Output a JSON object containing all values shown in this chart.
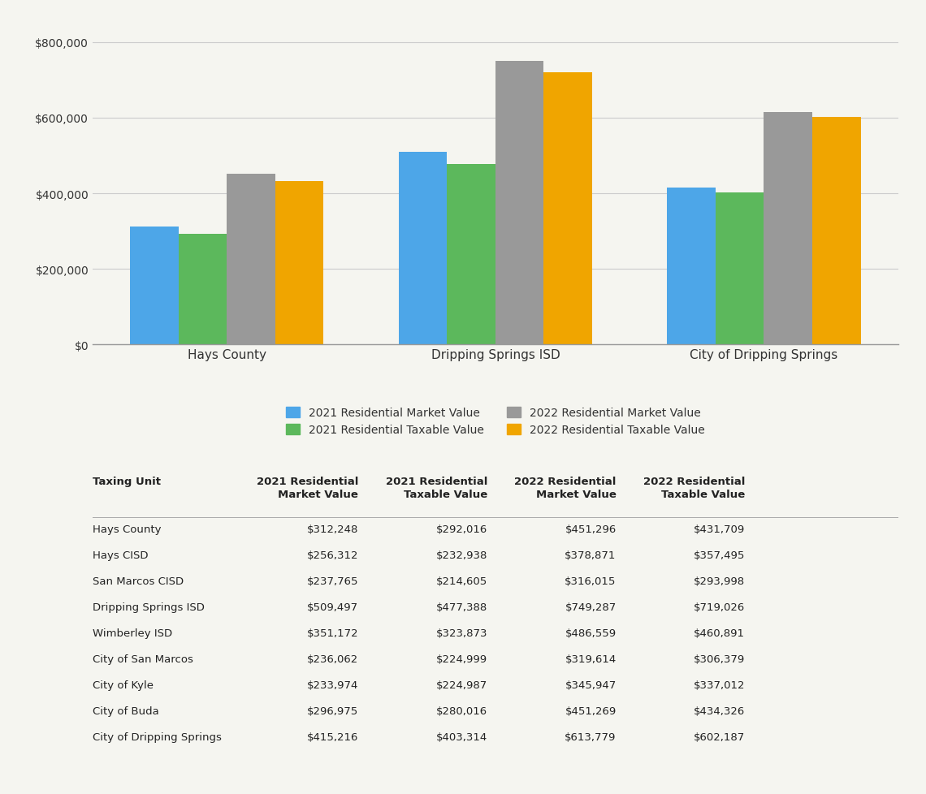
{
  "bar_groups": [
    {
      "label": "Hays County",
      "values": [
        312248,
        292016,
        451296,
        431709
      ]
    },
    {
      "label": "Dripping Springs ISD",
      "values": [
        509497,
        477388,
        749287,
        719026
      ]
    },
    {
      "label": "City of Dripping Springs",
      "values": [
        415216,
        403314,
        613779,
        602187
      ]
    }
  ],
  "bar_colors": [
    "#4da6e8",
    "#5cb85c",
    "#999999",
    "#f0a500"
  ],
  "legend_labels": [
    "2021 Residential Market Value",
    "2021 Residential Taxable Value",
    "2022 Residential Market Value",
    "2022 Residential Taxable Value"
  ],
  "yticks": [
    0,
    200000,
    400000,
    600000,
    800000
  ],
  "ytick_labels": [
    "$0",
    "$200,000",
    "$400,000",
    "$600,000",
    "$800,000"
  ],
  "ylim": [
    0,
    850000
  ],
  "background_color": "#f5f5f0",
  "table_headers": [
    "Taxing Unit",
    "2021 Residential\nMarket Value",
    "2021 Residential\nTaxable Value",
    "2022 Residential\nMarket Value",
    "2022 Residential\nTaxable Value"
  ],
  "table_rows": [
    [
      "Hays County",
      "$312,248",
      "$292,016",
      "$451,296",
      "$431,709"
    ],
    [
      "Hays CISD",
      "$256,312",
      "$232,938",
      "$378,871",
      "$357,495"
    ],
    [
      "San Marcos CISD",
      "$237,765",
      "$214,605",
      "$316,015",
      "$293,998"
    ],
    [
      "Dripping Springs ISD",
      "$509,497",
      "$477,388",
      "$749,287",
      "$719,026"
    ],
    [
      "Wimberley ISD",
      "$351,172",
      "$323,873",
      "$486,559",
      "$460,891"
    ],
    [
      "City of San Marcos",
      "$236,062",
      "$224,999",
      "$319,614",
      "$306,379"
    ],
    [
      "City of Kyle",
      "$233,974",
      "$224,987",
      "$345,947",
      "$337,012"
    ],
    [
      "City of Buda",
      "$296,975",
      "$280,016",
      "$451,269",
      "$434,326"
    ],
    [
      "City of Dripping Springs",
      "$415,216",
      "$403,314",
      "$613,779",
      "$602,187"
    ]
  ]
}
